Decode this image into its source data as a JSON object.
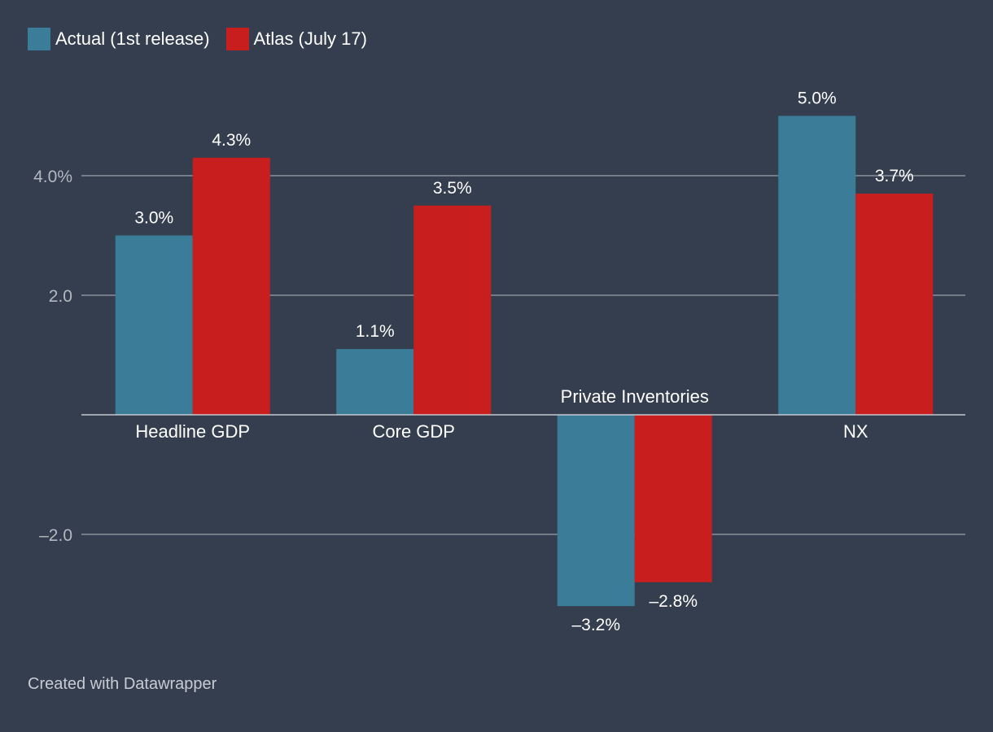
{
  "chart_data": {
    "type": "bar",
    "title": "",
    "xlabel": "",
    "ylabel": "",
    "categories": [
      "Headline GDP",
      "Core GDP",
      "Private Inventories",
      "NX"
    ],
    "series": [
      {
        "name": "Actual (1st release)",
        "color": "#3b7d98",
        "values": [
          3.0,
          1.1,
          -3.2,
          5.0
        ],
        "labels": [
          "3.0%",
          "1.1%",
          "–3.2%",
          "5.0%"
        ]
      },
      {
        "name": "Atlas (July 17)",
        "color": "#c81e1e",
        "values": [
          4.3,
          3.5,
          -2.8,
          3.7
        ],
        "labels": [
          "4.3%",
          "3.5%",
          "–2.8%",
          "3.7%"
        ]
      }
    ],
    "yticks": [
      {
        "value": 4,
        "label": "4.0%"
      },
      {
        "value": 2,
        "label": "2.0"
      },
      {
        "value": -2,
        "label": "–2.0"
      }
    ],
    "ylim": [
      -3.8,
      5.2
    ],
    "grid": true,
    "legend_position": "top-left"
  },
  "footer": {
    "credit": "Created with Datawrapper"
  },
  "colors": {
    "background": "#343e4e",
    "gridline": "#8a919c",
    "axis_text": "#b3b8c0",
    "text": "#ffffff"
  }
}
